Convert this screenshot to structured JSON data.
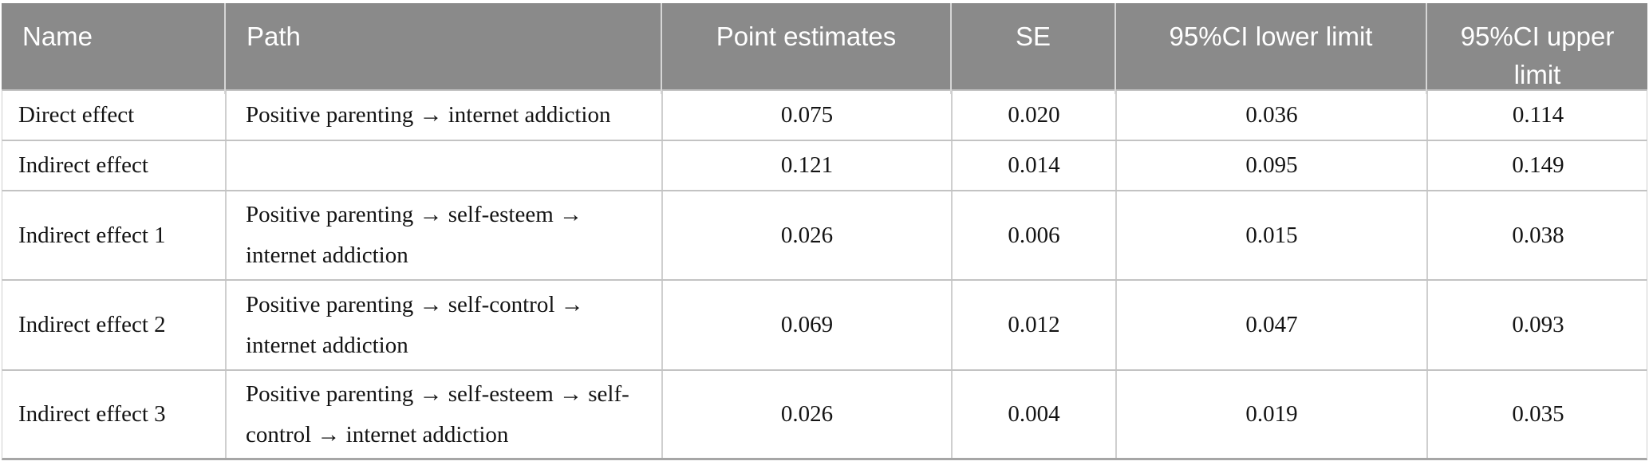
{
  "colors": {
    "header_bg": "#8a8a8a",
    "header_text": "#ffffff",
    "body_text": "#141414",
    "grid_line": "#cfcfcf",
    "bottom_border": "#a6a6a6"
  },
  "table": {
    "headers": {
      "name": "Name",
      "path": "Path",
      "point_estimates": "Point estimates",
      "se": "SE",
      "ci_lower": "95%CI lower limit",
      "ci_upper": "95%CI upper limit"
    },
    "rows": [
      {
        "name": "Direct effect",
        "path": "Positive parenting → internet addiction",
        "point_estimate": "0.075",
        "se": "0.020",
        "ci_lower": "0.036",
        "ci_upper": "0.114"
      },
      {
        "name": "Indirect effect",
        "path": "",
        "point_estimate": "0.121",
        "se": "0.014",
        "ci_lower": "0.095",
        "ci_upper": "0.149"
      },
      {
        "name": "Indirect effect 1",
        "path": "Positive parenting → self-esteem → internet addiction",
        "point_estimate": "0.026",
        "se": "0.006",
        "ci_lower": "0.015",
        "ci_upper": "0.038"
      },
      {
        "name": "Indirect effect 2",
        "path": "Positive parenting → self-control → internet addiction",
        "point_estimate": "0.069",
        "se": "0.012",
        "ci_lower": "0.047",
        "ci_upper": "0.093"
      },
      {
        "name": "Indirect effect 3",
        "path": "Positive parenting → self-esteem → self-control → internet addiction",
        "point_estimate": "0.026",
        "se": "0.004",
        "ci_lower": "0.019",
        "ci_upper": "0.035"
      }
    ]
  }
}
